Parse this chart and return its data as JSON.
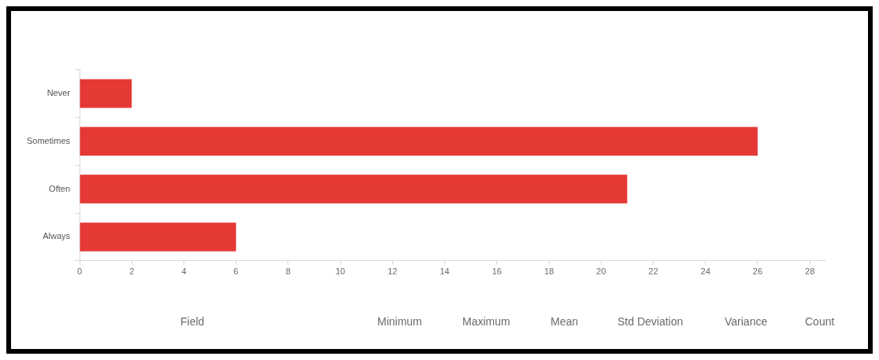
{
  "chart_data": {
    "type": "bar",
    "orientation": "horizontal",
    "categories": [
      "Never",
      "Sometimes",
      "Often",
      "Always"
    ],
    "values": [
      2,
      26,
      21,
      6
    ],
    "color": "#e53935",
    "xlim": [
      0,
      28.6
    ],
    "xticks": [
      0,
      2,
      4,
      6,
      8,
      10,
      12,
      14,
      16,
      18,
      20,
      22,
      24,
      26,
      28
    ],
    "grid": false,
    "legend": false,
    "annotations": [
      "Field",
      "Minimum",
      "Maximum",
      "Mean",
      "Std Deviation",
      "Variance",
      "Count"
    ]
  }
}
